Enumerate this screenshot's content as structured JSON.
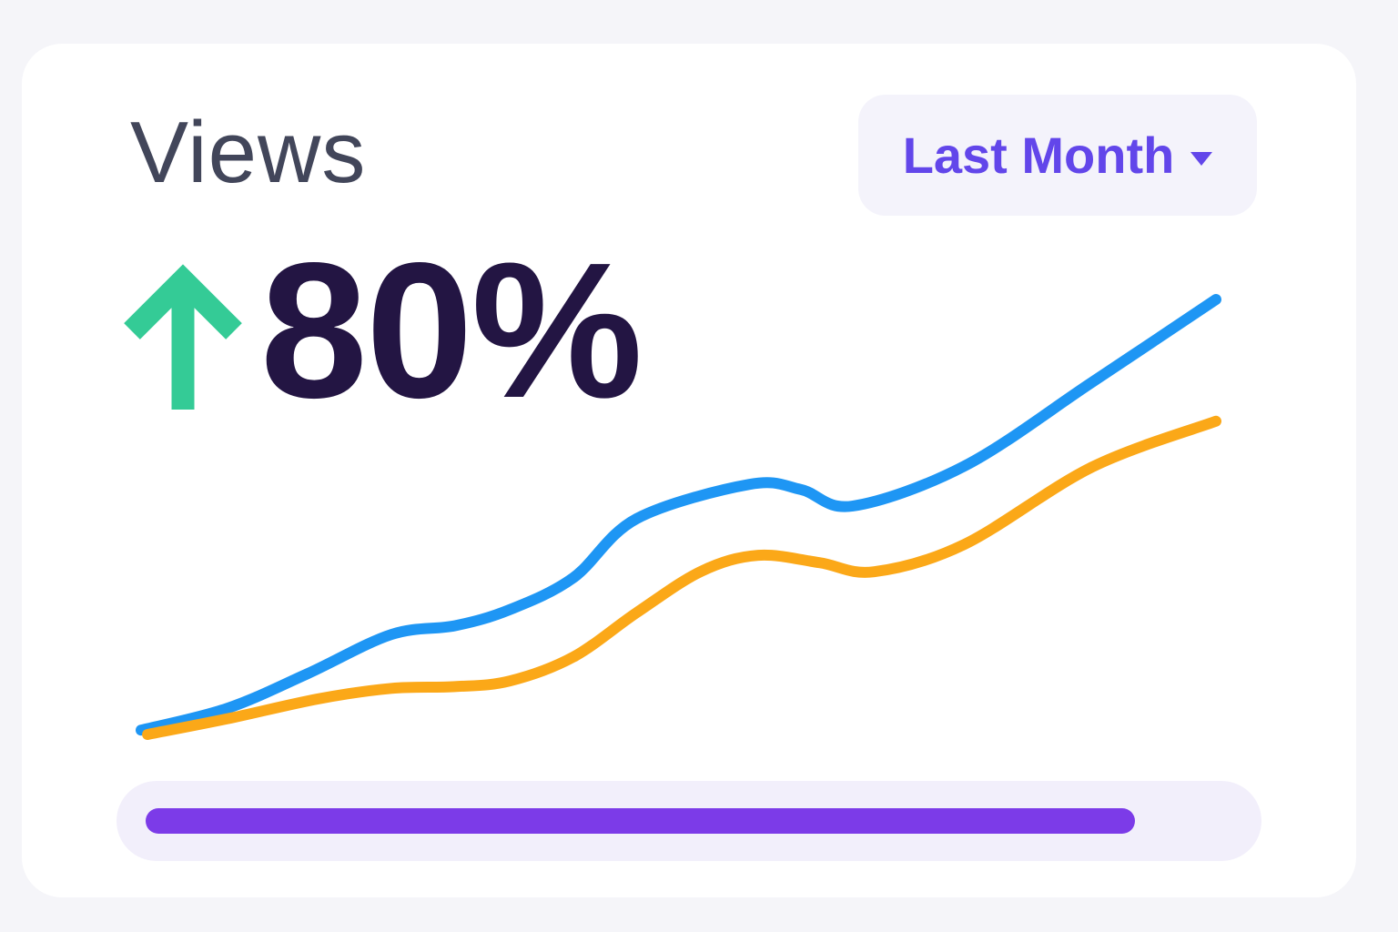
{
  "page": {
    "background": "#F5F5F9",
    "card_background": "#FFFFFF"
  },
  "header": {
    "title": "Views",
    "title_color": "#42465A"
  },
  "period_selector": {
    "label": "Last Month",
    "text_color": "#6246EA",
    "background": "#F4F3FB",
    "caret_icon": "chevron-down"
  },
  "stat": {
    "value": "80%",
    "direction": "up",
    "arrow_icon": "trend-up-arrow",
    "arrow_color": "#34CB96",
    "value_color": "#231543"
  },
  "chart_data": {
    "type": "line",
    "title": "Views trend",
    "xlabel": "",
    "ylabel": "",
    "axes_visible": false,
    "grid": false,
    "legend": "none",
    "x_range_percent": [
      0,
      100
    ],
    "ylim": [
      0,
      100
    ],
    "note": "decorative smoothed line chart, no tick labels; point values estimated as percent of plot area",
    "series": [
      {
        "name": "series-blue",
        "color": "#1E96F4",
        "stroke_width": 12,
        "points": [
          [
            0,
            1
          ],
          [
            8,
            6
          ],
          [
            15.5,
            14
          ],
          [
            23.3,
            23
          ],
          [
            29.2,
            25
          ],
          [
            34.3,
            28.7
          ],
          [
            40.2,
            36
          ],
          [
            46.1,
            49.6
          ],
          [
            56.6,
            57.5
          ],
          [
            61.4,
            56.3
          ],
          [
            66.2,
            52.5
          ],
          [
            76.6,
            61.7
          ],
          [
            88.5,
            81
          ],
          [
            100,
            100
          ]
        ]
      },
      {
        "name": "series-orange",
        "color": "#FBA818",
        "stroke_width": 12,
        "points": [
          [
            0.6,
            0
          ],
          [
            8,
            3.6
          ],
          [
            16.5,
            8.2
          ],
          [
            23.3,
            10.6
          ],
          [
            29.2,
            11
          ],
          [
            34.3,
            12.3
          ],
          [
            40.2,
            17.8
          ],
          [
            46.1,
            28
          ],
          [
            52.1,
            37.5
          ],
          [
            57.4,
            41.2
          ],
          [
            63.1,
            39.5
          ],
          [
            68.2,
            37.4
          ],
          [
            76.6,
            43.7
          ],
          [
            88.5,
            61.5
          ],
          [
            100,
            72
          ]
        ]
      }
    ]
  },
  "progress": {
    "percent": 91,
    "track_color": "#F2EFFB",
    "fill_color": "#7C3BE8"
  }
}
